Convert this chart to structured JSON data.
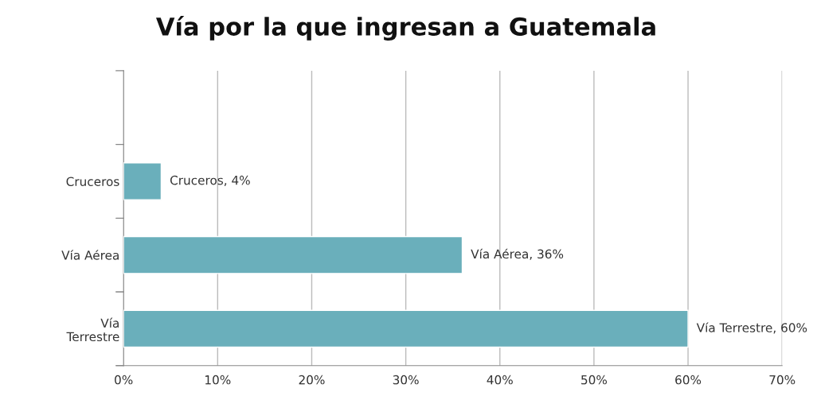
{
  "chart_data": {
    "type": "bar",
    "orientation": "horizontal",
    "title": "Vía por la que ingresan a Guatemala",
    "categories": [
      null,
      "Cruceros",
      "Vía Aérea",
      "Vía\nTerrestre"
    ],
    "values": [
      null,
      4,
      36,
      60
    ],
    "value_labels": [
      null,
      "Cruceros, 4%",
      "Vía Aérea, 36%",
      "Vía Terrestre, 60%"
    ],
    "color": "#6aafbb",
    "xlim": [
      0,
      70
    ],
    "xticks": [
      {
        "value": 0,
        "label": "0%"
      },
      {
        "value": 10,
        "label": "10%"
      },
      {
        "value": 20,
        "label": "20%"
      },
      {
        "value": 30,
        "label": "30%"
      },
      {
        "value": 40,
        "label": "40%"
      },
      {
        "value": 50,
        "label": "50%"
      },
      {
        "value": 60,
        "label": "60%"
      },
      {
        "value": 70,
        "label": "70%"
      }
    ],
    "grid": "x",
    "legend": false
  }
}
